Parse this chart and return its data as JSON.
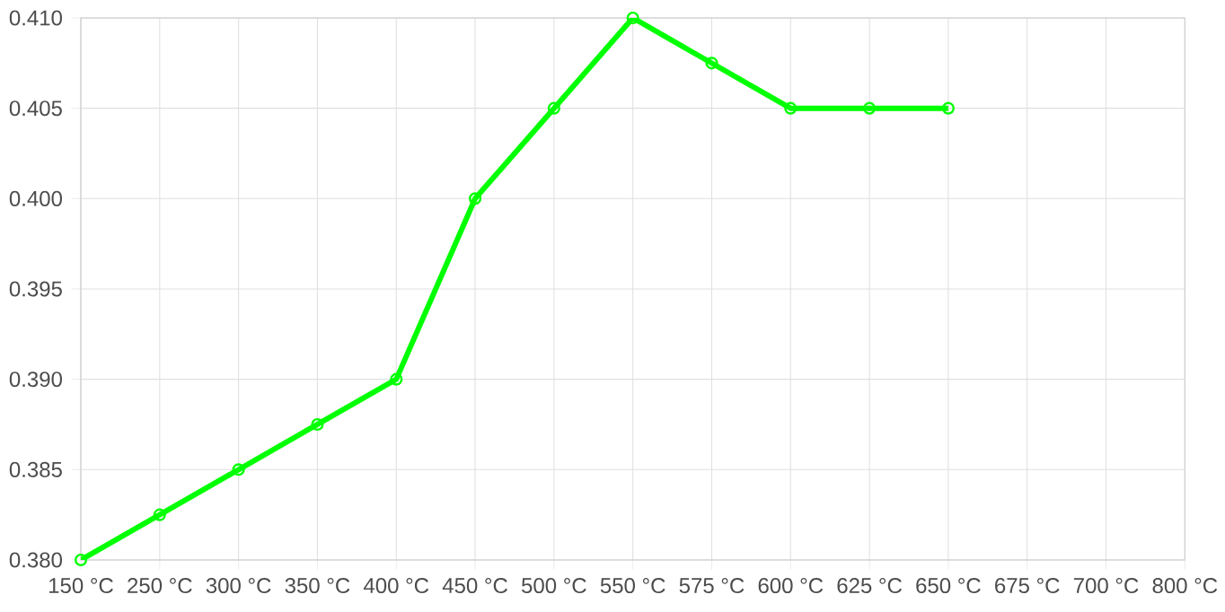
{
  "chart_data": {
    "type": "line",
    "categories": [
      "150 °C",
      "250 °C",
      "300 °C",
      "350 °C",
      "400 °C",
      "450 °C",
      "500 °C",
      "550 °C",
      "575 °C",
      "600 °C",
      "625 °C",
      "650 °C",
      "675 °C",
      "700 °C",
      "800 °C"
    ],
    "series": [
      {
        "color": "#00ff00",
        "values": [
          0.38,
          0.3825,
          0.385,
          0.3875,
          0.39,
          0.4,
          0.405,
          0.41,
          0.4075,
          0.405,
          0.405,
          0.405,
          null,
          null,
          null
        ]
      }
    ],
    "ylim": [
      0.38,
      0.41
    ],
    "yticks": [
      {
        "value": 0.38,
        "label": "0.380"
      },
      {
        "value": 0.385,
        "label": "0.385"
      },
      {
        "value": 0.39,
        "label": "0.390"
      },
      {
        "value": 0.395,
        "label": "0.395"
      },
      {
        "value": 0.4,
        "label": "0.400"
      },
      {
        "value": 0.405,
        "label": "0.405"
      },
      {
        "value": 0.41,
        "label": "0.410"
      }
    ],
    "grid": true,
    "marker": "circle",
    "line_style": "solid"
  }
}
